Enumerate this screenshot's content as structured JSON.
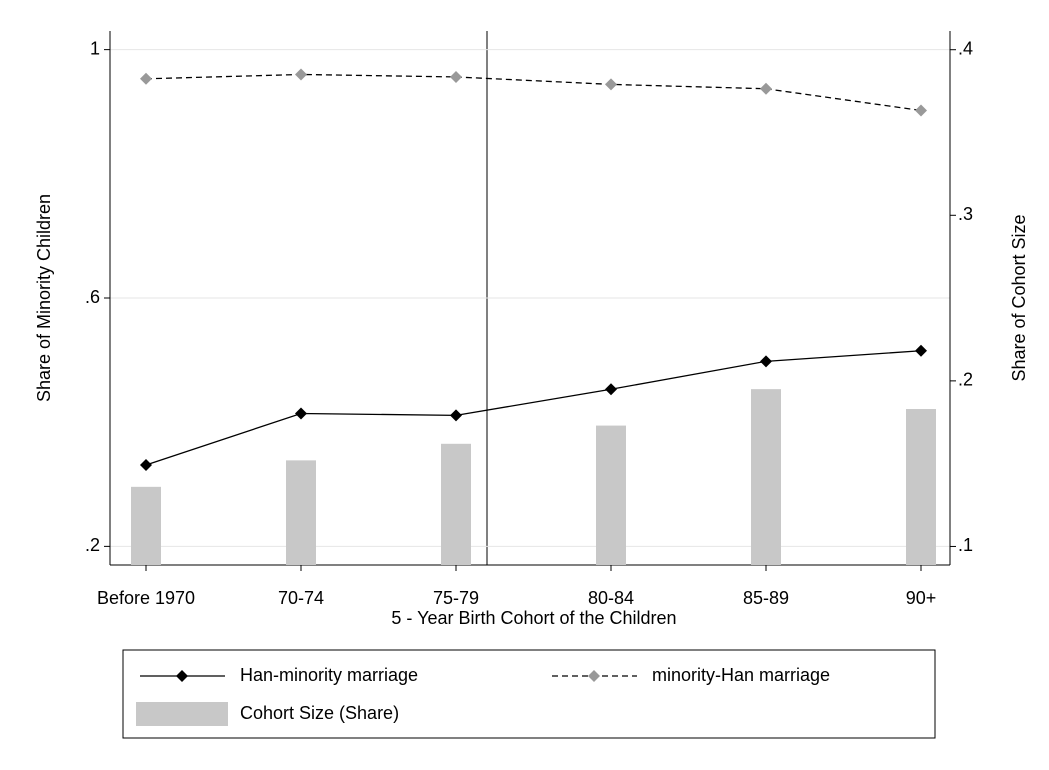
{
  "chart_data": {
    "type": "line",
    "xlabel": "5 - Year Birth Cohort of the Children",
    "ylabel": "Share of Minority Children",
    "y2label": "Share of Cohort Size",
    "categories": [
      "Before 1970",
      "70-74",
      "75-79",
      "80-84",
      "85-89",
      "90+"
    ],
    "series": [
      {
        "name": "Han-minority marriage",
        "type": "line",
        "color": "#000000",
        "marker_color": "#000000",
        "dash": false,
        "values": [
          0.331,
          0.414,
          0.411,
          0.453,
          0.498,
          0.515
        ]
      },
      {
        "name": "minority-Han marriage",
        "type": "line",
        "color": "#000000",
        "marker_color": "#999999",
        "dash": true,
        "values": [
          0.953,
          0.96,
          0.956,
          0.944,
          0.937,
          0.902
        ]
      },
      {
        "name": "Cohort Size (Share)",
        "type": "bar",
        "axis": "y2",
        "color": "#c8c8c8",
        "values": [
          0.136,
          0.152,
          0.162,
          0.173,
          0.195,
          0.183
        ]
      }
    ],
    "ylim": [
      0.17,
      1.03
    ],
    "yticks": [
      {
        "value": 0.2,
        "label": ".2"
      },
      {
        "value": 0.6,
        "label": ".6"
      },
      1
    ],
    "y2lim": [
      0.0888,
      0.4113
    ],
    "y2ticks": [
      {
        "value": 0.1,
        "label": ".1"
      },
      {
        "value": 0.2,
        "label": ".2"
      },
      {
        "value": 0.3,
        "label": ".3"
      },
      {
        "value": 0.4,
        "label": ".4"
      }
    ],
    "grid": true
  }
}
